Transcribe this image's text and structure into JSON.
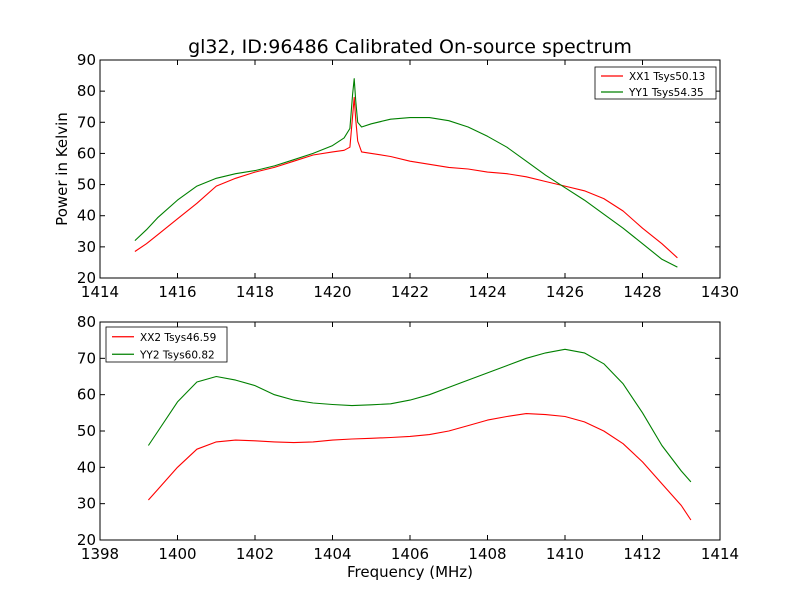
{
  "figure_title": "gl32, ID:96486 Calibrated On-source spectrum",
  "colors": {
    "red": "#ff0000",
    "green": "#008000"
  },
  "chart_data": [
    {
      "type": "line",
      "title": "gl32, ID:96486 Calibrated On-source spectrum",
      "xlabel": "",
      "ylabel": "Power in Kelvin",
      "xlim": [
        1414,
        1430
      ],
      "ylim": [
        20,
        90
      ],
      "xticks": [
        1414,
        1416,
        1418,
        1420,
        1422,
        1424,
        1426,
        1428,
        1430
      ],
      "yticks": [
        20,
        30,
        40,
        50,
        60,
        70,
        80,
        90
      ],
      "legend_position": "top-right",
      "series": [
        {
          "name": "XX1 Tsys50.13",
          "color": "#ff0000",
          "x": [
            1414.9,
            1415.2,
            1415.5,
            1416.0,
            1416.5,
            1417.0,
            1417.5,
            1418.0,
            1418.5,
            1419.0,
            1419.5,
            1420.0,
            1420.3,
            1420.45,
            1420.52,
            1420.56,
            1420.6,
            1420.65,
            1420.75,
            1421.0,
            1421.5,
            1422.0,
            1422.5,
            1423.0,
            1423.5,
            1424.0,
            1424.5,
            1425.0,
            1425.5,
            1426.0,
            1426.5,
            1427.0,
            1427.5,
            1428.0,
            1428.5,
            1428.9
          ],
          "y": [
            28.5,
            31,
            34,
            39,
            44,
            49.5,
            52,
            54,
            55.5,
            57.5,
            59.5,
            60.5,
            61,
            62,
            72,
            78,
            71,
            64,
            60.5,
            60,
            59,
            57.5,
            56.5,
            55.5,
            55,
            54,
            53.5,
            52.5,
            51,
            49.5,
            48,
            45.5,
            41.5,
            36,
            31,
            26.5
          ]
        },
        {
          "name": "YY1 Tsys54.35",
          "color": "#008000",
          "x": [
            1414.9,
            1415.2,
            1415.5,
            1416.0,
            1416.5,
            1417.0,
            1417.5,
            1418.0,
            1418.5,
            1419.0,
            1419.5,
            1420.0,
            1420.3,
            1420.45,
            1420.52,
            1420.56,
            1420.6,
            1420.65,
            1420.75,
            1421.0,
            1421.5,
            1422.0,
            1422.5,
            1423.0,
            1423.5,
            1424.0,
            1424.5,
            1425.0,
            1425.5,
            1426.0,
            1426.5,
            1427.0,
            1427.5,
            1428.0,
            1428.5,
            1428.9
          ],
          "y": [
            32,
            35.5,
            39.5,
            45,
            49.5,
            52,
            53.5,
            54.5,
            56,
            58,
            60,
            62.5,
            65,
            68,
            79,
            84,
            77,
            70,
            68.5,
            69.5,
            71,
            71.5,
            71.5,
            70.5,
            68.5,
            65.5,
            62,
            57.5,
            53,
            49,
            45,
            40.5,
            36,
            31,
            26,
            23.5
          ]
        }
      ]
    },
    {
      "type": "line",
      "title": "",
      "xlabel": "Frequency (MHz)",
      "ylabel": "",
      "xlim": [
        1398,
        1414
      ],
      "ylim": [
        20,
        80
      ],
      "xticks": [
        1398,
        1400,
        1402,
        1404,
        1406,
        1408,
        1410,
        1412,
        1414
      ],
      "yticks": [
        20,
        30,
        40,
        50,
        60,
        70,
        80
      ],
      "legend_position": "top-left",
      "series": [
        {
          "name": "XX2 Tsys46.59",
          "color": "#ff0000",
          "x": [
            1399.25,
            1399.5,
            1400.0,
            1400.5,
            1401.0,
            1401.5,
            1402.0,
            1402.5,
            1403.0,
            1403.5,
            1404.0,
            1404.5,
            1405.0,
            1405.5,
            1406.0,
            1406.5,
            1407.0,
            1407.5,
            1408.0,
            1408.5,
            1409.0,
            1409.5,
            1410.0,
            1410.5,
            1411.0,
            1411.5,
            1412.0,
            1412.5,
            1413.0,
            1413.25
          ],
          "y": [
            31,
            34,
            40,
            45,
            47,
            47.5,
            47.3,
            47,
            46.8,
            47,
            47.5,
            47.8,
            48,
            48.2,
            48.5,
            49,
            50,
            51.5,
            53,
            54,
            54.8,
            54.5,
            54,
            52.5,
            50,
            46.5,
            41.5,
            35.5,
            29.5,
            25.5
          ]
        },
        {
          "name": "YY2 Tsys60.82",
          "color": "#008000",
          "x": [
            1399.25,
            1399.5,
            1400.0,
            1400.5,
            1401.0,
            1401.5,
            1402.0,
            1402.5,
            1403.0,
            1403.5,
            1404.0,
            1404.5,
            1405.0,
            1405.5,
            1406.0,
            1406.5,
            1407.0,
            1407.5,
            1408.0,
            1408.5,
            1409.0,
            1409.5,
            1410.0,
            1410.5,
            1411.0,
            1411.5,
            1412.0,
            1412.5,
            1413.0,
            1413.25
          ],
          "y": [
            46,
            50,
            58,
            63.5,
            65,
            64,
            62.5,
            60,
            58.5,
            57.7,
            57.3,
            57,
            57.2,
            57.5,
            58.5,
            60,
            62,
            64,
            66,
            68,
            70,
            71.5,
            72.5,
            71.5,
            68.5,
            63,
            55,
            46,
            39,
            36
          ]
        }
      ]
    }
  ]
}
